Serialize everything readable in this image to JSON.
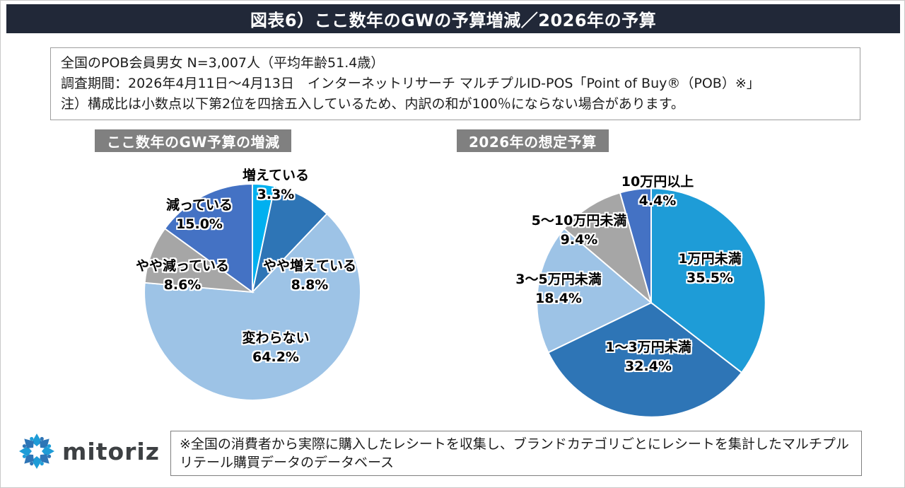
{
  "header": {
    "title": "図表6）ここ数年のGWの予算増減／2026年の予算"
  },
  "info_box": {
    "line1": "全国のPOB会員男女 N=3,007人（平均年齢51.4歳）",
    "line2": "調査期間：2026年4月11日〜4月13日　インターネットリサーチ マルチプルID-POS「Point of Buy®（POB）※」",
    "line3": "注）構成比は小数点以下第2位を四捨五入しているため、内訳の和が100％にならない場合があります。"
  },
  "chart_data": [
    {
      "type": "pie",
      "title": "ここ数年のGW予算の増減",
      "start_angle_deg": 0,
      "direction": "clockwise",
      "legend": "none",
      "categories": [
        "増えている",
        "やや増えている",
        "変わらない",
        "やや減っている",
        "減っている"
      ],
      "values": [
        3.3,
        8.8,
        64.2,
        8.6,
        15.0
      ],
      "pct_labels": [
        "3.3%",
        "8.8%",
        "64.2%",
        "8.6%",
        "15.0%"
      ],
      "colors": [
        "#00B0F0",
        "#2E75B6",
        "#9DC3E6",
        "#A6A6A6",
        "#4472C4"
      ]
    },
    {
      "type": "pie",
      "title": "2026年の想定予算",
      "start_angle_deg": 0,
      "direction": "clockwise",
      "legend": "none",
      "categories": [
        "1万円未満",
        "1〜3万円未満",
        "3〜5万円未満",
        "5〜10万円未満",
        "10万円以上"
      ],
      "values": [
        35.5,
        32.4,
        18.4,
        9.4,
        4.4
      ],
      "pct_labels": [
        "35.5%",
        "32.4%",
        "18.4%",
        "9.4%",
        "4.4%"
      ],
      "colors": [
        "#1E9CD7",
        "#2E75B6",
        "#9DC3E6",
        "#A6A6A6",
        "#4472C4"
      ]
    }
  ],
  "footer": {
    "logo_text": "mitoriz",
    "note": "※全国の消費者から実際に購入したレシートを収集し、ブランドカテゴリごとにレシートを集計したマルチプルリテール購買データのデータベース"
  },
  "colors": {
    "title_bar_bg": "#212838",
    "badge_bg": "#808080",
    "logo_blue_light": "#1E9CD7",
    "logo_blue_dark": "#2E75B6"
  }
}
